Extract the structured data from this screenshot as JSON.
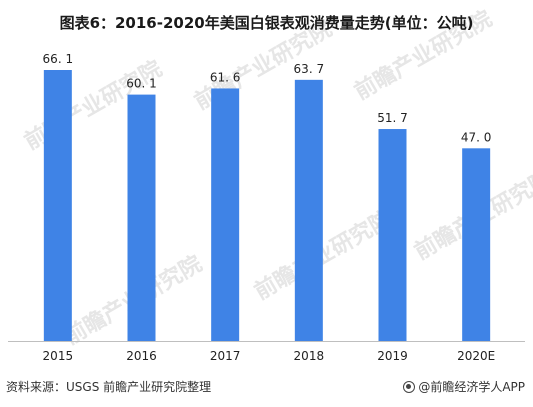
{
  "chart_data": {
    "type": "bar",
    "title": "图表6：2016-2020年美国白银表观消费量走势(单位：公吨)",
    "categories": [
      "2015",
      "2016",
      "2017",
      "2018",
      "2019",
      "2020E"
    ],
    "values": [
      66.1,
      60.1,
      61.6,
      63.7,
      51.7,
      47.0
    ],
    "value_labels": [
      "66. 1",
      "60. 1",
      "61. 6",
      "63. 7",
      "51. 7",
      "47. 0"
    ],
    "xlabel": "",
    "ylabel": "",
    "ylim": [
      0,
      66.1
    ],
    "grid": false,
    "legend": "none",
    "bar_color": "#3f83e6"
  },
  "footer": {
    "source": "资料来源：USGS 前瞻产业研究院整理",
    "brand": "@前瞻经济学人APP"
  },
  "watermark": {
    "text": "前瞻产业研究院",
    "color": "#e6e6e6"
  }
}
